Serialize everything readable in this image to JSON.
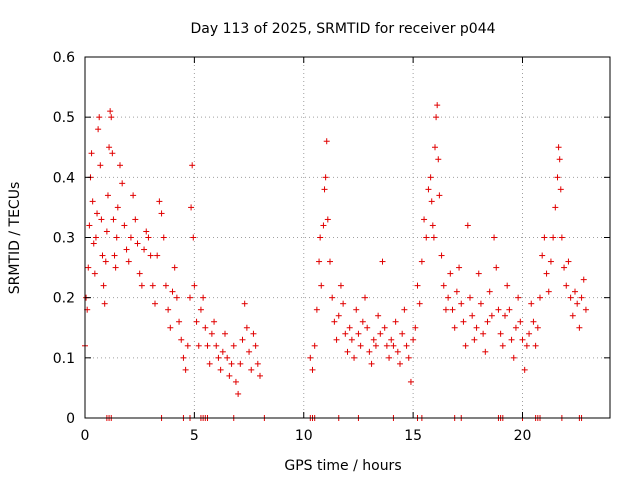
{
  "chart_data": {
    "type": "scatter",
    "title": "Day 113 of 2025, SRMTID for receiver p044",
    "xlabel": "GPS time / hours",
    "ylabel": "SRMTID / TECUs",
    "xlim": [
      0,
      24
    ],
    "ylim": [
      0,
      0.6
    ],
    "xticks": [
      0,
      5,
      10,
      15,
      20
    ],
    "xtick_labels": [
      "0",
      "5",
      "10",
      "15",
      "20"
    ],
    "yticks": [
      0,
      0.1,
      0.2,
      0.3,
      0.4,
      0.5,
      0.6
    ],
    "ytick_labels": [
      "0",
      "0.1",
      "0.2",
      "0.3",
      "0.4",
      "0.5",
      "0.6"
    ],
    "grid": true,
    "marker": "+",
    "color": "#e00000",
    "series": [
      {
        "name": "SRMTID",
        "points": [
          [
            0.0,
            0.12
          ],
          [
            0.05,
            0.2
          ],
          [
            0.1,
            0.18
          ],
          [
            0.15,
            0.25
          ],
          [
            0.2,
            0.32
          ],
          [
            0.25,
            0.4
          ],
          [
            0.3,
            0.44
          ],
          [
            0.35,
            0.36
          ],
          [
            0.4,
            0.29
          ],
          [
            0.45,
            0.24
          ],
          [
            0.5,
            0.3
          ],
          [
            0.55,
            0.34
          ],
          [
            0.6,
            0.48
          ],
          [
            0.65,
            0.5
          ],
          [
            0.7,
            0.42
          ],
          [
            0.75,
            0.33
          ],
          [
            0.8,
            0.27
          ],
          [
            0.85,
            0.22
          ],
          [
            0.9,
            0.19
          ],
          [
            0.95,
            0.26
          ],
          [
            1.0,
            0.31
          ],
          [
            1.05,
            0.37
          ],
          [
            1.1,
            0.45
          ],
          [
            1.15,
            0.51
          ],
          [
            1.2,
            0.5
          ],
          [
            1.25,
            0.44
          ],
          [
            1.3,
            0.33
          ],
          [
            1.35,
            0.27
          ],
          [
            1.4,
            0.25
          ],
          [
            1.45,
            0.3
          ],
          [
            1.5,
            0.35
          ],
          [
            1.6,
            0.42
          ],
          [
            1.7,
            0.39
          ],
          [
            1.8,
            0.32
          ],
          [
            1.9,
            0.28
          ],
          [
            2.0,
            0.26
          ],
          [
            2.1,
            0.3
          ],
          [
            2.2,
            0.37
          ],
          [
            2.3,
            0.33
          ],
          [
            2.4,
            0.29
          ],
          [
            2.5,
            0.24
          ],
          [
            2.6,
            0.22
          ],
          [
            2.7,
            0.28
          ],
          [
            2.8,
            0.31
          ],
          [
            2.9,
            0.3
          ],
          [
            3.0,
            0.27
          ],
          [
            3.1,
            0.22
          ],
          [
            3.2,
            0.19
          ],
          [
            3.3,
            0.27
          ],
          [
            3.4,
            0.36
          ],
          [
            3.5,
            0.34
          ],
          [
            3.6,
            0.3
          ],
          [
            3.7,
            0.22
          ],
          [
            3.8,
            0.18
          ],
          [
            3.9,
            0.15
          ],
          [
            4.0,
            0.21
          ],
          [
            4.1,
            0.25
          ],
          [
            4.2,
            0.2
          ],
          [
            4.3,
            0.16
          ],
          [
            4.4,
            0.13
          ],
          [
            4.5,
            0.1
          ],
          [
            4.6,
            0.08
          ],
          [
            4.7,
            0.12
          ],
          [
            4.8,
            0.2
          ],
          [
            4.85,
            0.35
          ],
          [
            4.9,
            0.42
          ],
          [
            4.95,
            0.3
          ],
          [
            5.0,
            0.22
          ],
          [
            5.1,
            0.16
          ],
          [
            5.2,
            0.12
          ],
          [
            5.3,
            0.18
          ],
          [
            5.4,
            0.2
          ],
          [
            5.5,
            0.15
          ],
          [
            5.6,
            0.12
          ],
          [
            5.7,
            0.09
          ],
          [
            5.8,
            0.14
          ],
          [
            5.9,
            0.16
          ],
          [
            6.0,
            0.12
          ],
          [
            6.1,
            0.1
          ],
          [
            6.2,
            0.08
          ],
          [
            6.3,
            0.11
          ],
          [
            6.4,
            0.14
          ],
          [
            6.5,
            0.1
          ],
          [
            6.6,
            0.07
          ],
          [
            6.7,
            0.09
          ],
          [
            6.8,
            0.12
          ],
          [
            6.9,
            0.06
          ],
          [
            7.0,
            0.04
          ],
          [
            7.1,
            0.09
          ],
          [
            7.2,
            0.13
          ],
          [
            7.3,
            0.19
          ],
          [
            7.4,
            0.15
          ],
          [
            7.5,
            0.11
          ],
          [
            7.6,
            0.08
          ],
          [
            7.7,
            0.14
          ],
          [
            7.8,
            0.12
          ],
          [
            7.9,
            0.09
          ],
          [
            8.0,
            0.07
          ],
          [
            10.3,
            0.1
          ],
          [
            10.4,
            0.08
          ],
          [
            10.5,
            0.12
          ],
          [
            10.6,
            0.18
          ],
          [
            10.7,
            0.26
          ],
          [
            10.75,
            0.3
          ],
          [
            10.8,
            0.22
          ],
          [
            10.9,
            0.32
          ],
          [
            10.95,
            0.38
          ],
          [
            11.0,
            0.4
          ],
          [
            11.05,
            0.46
          ],
          [
            11.1,
            0.33
          ],
          [
            11.2,
            0.26
          ],
          [
            11.3,
            0.2
          ],
          [
            11.4,
            0.16
          ],
          [
            11.5,
            0.13
          ],
          [
            11.6,
            0.17
          ],
          [
            11.7,
            0.22
          ],
          [
            11.8,
            0.19
          ],
          [
            11.9,
            0.14
          ],
          [
            12.0,
            0.11
          ],
          [
            12.1,
            0.15
          ],
          [
            12.2,
            0.13
          ],
          [
            12.3,
            0.1
          ],
          [
            12.4,
            0.18
          ],
          [
            12.5,
            0.14
          ],
          [
            12.6,
            0.12
          ],
          [
            12.7,
            0.16
          ],
          [
            12.8,
            0.2
          ],
          [
            12.9,
            0.15
          ],
          [
            13.0,
            0.11
          ],
          [
            13.1,
            0.09
          ],
          [
            13.2,
            0.13
          ],
          [
            13.3,
            0.12
          ],
          [
            13.4,
            0.17
          ],
          [
            13.5,
            0.14
          ],
          [
            13.6,
            0.26
          ],
          [
            13.7,
            0.15
          ],
          [
            13.8,
            0.12
          ],
          [
            13.9,
            0.1
          ],
          [
            14.0,
            0.13
          ],
          [
            14.1,
            0.12
          ],
          [
            14.2,
            0.16
          ],
          [
            14.3,
            0.11
          ],
          [
            14.4,
            0.09
          ],
          [
            14.5,
            0.14
          ],
          [
            14.6,
            0.18
          ],
          [
            14.7,
            0.12
          ],
          [
            14.8,
            0.1
          ],
          [
            14.9,
            0.06
          ],
          [
            15.0,
            0.13
          ],
          [
            15.1,
            0.15
          ],
          [
            15.2,
            0.22
          ],
          [
            15.3,
            0.19
          ],
          [
            15.4,
            0.26
          ],
          [
            15.5,
            0.33
          ],
          [
            15.6,
            0.3
          ],
          [
            15.7,
            0.38
          ],
          [
            15.8,
            0.4
          ],
          [
            15.85,
            0.36
          ],
          [
            15.9,
            0.32
          ],
          [
            15.95,
            0.3
          ],
          [
            16.0,
            0.45
          ],
          [
            16.05,
            0.5
          ],
          [
            16.1,
            0.52
          ],
          [
            16.15,
            0.43
          ],
          [
            16.2,
            0.37
          ],
          [
            16.3,
            0.27
          ],
          [
            16.4,
            0.22
          ],
          [
            16.5,
            0.18
          ],
          [
            16.6,
            0.2
          ],
          [
            16.7,
            0.24
          ],
          [
            16.8,
            0.18
          ],
          [
            16.9,
            0.15
          ],
          [
            17.0,
            0.21
          ],
          [
            17.1,
            0.25
          ],
          [
            17.2,
            0.19
          ],
          [
            17.3,
            0.16
          ],
          [
            17.4,
            0.12
          ],
          [
            17.5,
            0.32
          ],
          [
            17.6,
            0.2
          ],
          [
            17.7,
            0.17
          ],
          [
            17.8,
            0.13
          ],
          [
            17.9,
            0.15
          ],
          [
            18.0,
            0.24
          ],
          [
            18.1,
            0.19
          ],
          [
            18.2,
            0.14
          ],
          [
            18.3,
            0.11
          ],
          [
            18.4,
            0.16
          ],
          [
            18.5,
            0.21
          ],
          [
            18.6,
            0.17
          ],
          [
            18.7,
            0.3
          ],
          [
            18.8,
            0.25
          ],
          [
            18.9,
            0.18
          ],
          [
            19.0,
            0.14
          ],
          [
            19.1,
            0.12
          ],
          [
            19.2,
            0.17
          ],
          [
            19.3,
            0.22
          ],
          [
            19.4,
            0.18
          ],
          [
            19.5,
            0.13
          ],
          [
            19.6,
            0.1
          ],
          [
            19.7,
            0.15
          ],
          [
            19.8,
            0.2
          ],
          [
            19.9,
            0.16
          ],
          [
            20.0,
            0.13
          ],
          [
            20.1,
            0.08
          ],
          [
            20.2,
            0.12
          ],
          [
            20.3,
            0.14
          ],
          [
            20.4,
            0.19
          ],
          [
            20.5,
            0.16
          ],
          [
            20.6,
            0.12
          ],
          [
            20.7,
            0.15
          ],
          [
            20.8,
            0.2
          ],
          [
            20.9,
            0.27
          ],
          [
            21.0,
            0.3
          ],
          [
            21.1,
            0.24
          ],
          [
            21.2,
            0.21
          ],
          [
            21.3,
            0.26
          ],
          [
            21.4,
            0.3
          ],
          [
            21.5,
            0.35
          ],
          [
            21.6,
            0.4
          ],
          [
            21.65,
            0.45
          ],
          [
            21.7,
            0.43
          ],
          [
            21.75,
            0.38
          ],
          [
            21.8,
            0.3
          ],
          [
            21.9,
            0.25
          ],
          [
            22.0,
            0.22
          ],
          [
            22.1,
            0.26
          ],
          [
            22.2,
            0.2
          ],
          [
            22.3,
            0.17
          ],
          [
            22.4,
            0.21
          ],
          [
            22.5,
            0.19
          ],
          [
            22.6,
            0.15
          ],
          [
            22.7,
            0.2
          ],
          [
            22.8,
            0.23
          ],
          [
            22.9,
            0.18
          ]
        ],
        "baseline_marks": [
          1.0,
          1.1,
          1.2,
          3.5,
          4.5,
          4.8,
          5.3,
          5.4,
          5.5,
          5.6,
          6.8,
          8.2,
          10.3,
          10.4,
          10.5,
          11.6,
          12.5,
          14.1,
          15.2,
          15.4,
          16.9,
          17.2,
          18.9,
          19.0,
          19.1,
          20.0,
          20.6,
          20.7,
          20.8,
          21.8,
          22.6,
          22.7
        ]
      }
    ]
  }
}
